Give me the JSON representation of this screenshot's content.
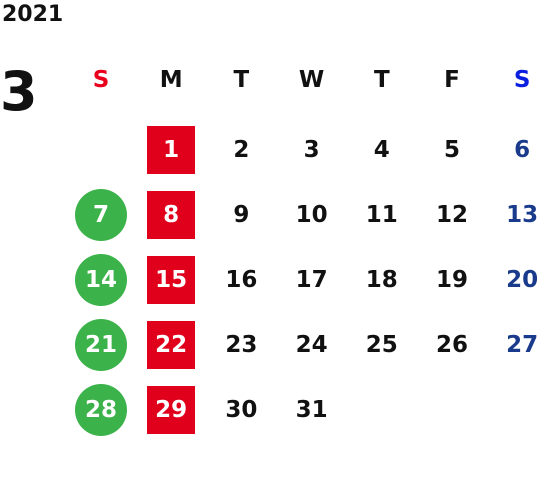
{
  "year": "2021",
  "month": "3",
  "weekdays": [
    "S",
    "M",
    "T",
    "W",
    "T",
    "F",
    "S"
  ],
  "weeks": [
    [
      null,
      1,
      2,
      3,
      4,
      5,
      6
    ],
    [
      7,
      8,
      9,
      10,
      11,
      12,
      13
    ],
    [
      14,
      15,
      16,
      17,
      18,
      19,
      20
    ],
    [
      21,
      22,
      23,
      24,
      25,
      26,
      27
    ],
    [
      28,
      29,
      30,
      31,
      null,
      null,
      null
    ]
  ]
}
